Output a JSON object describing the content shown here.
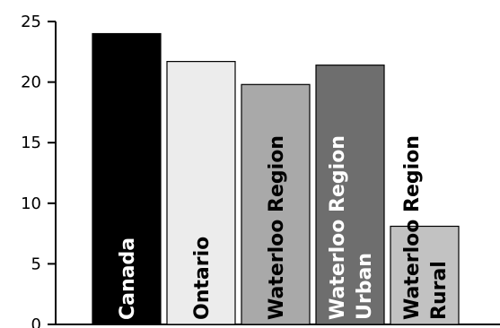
{
  "chart_data": {
    "type": "bar",
    "title": "",
    "xlabel": "",
    "ylabel": "",
    "ylim": [
      0,
      25
    ],
    "yticks": [
      0,
      5,
      10,
      15,
      20,
      25
    ],
    "grid": false,
    "categories": [
      {
        "lines": [
          "Canada"
        ],
        "value": 24.0,
        "color": "#000000",
        "label_color": "#ffffff"
      },
      {
        "lines": [
          "Ontario"
        ],
        "value": 21.7,
        "color": "#ececec",
        "label_color": "#000000"
      },
      {
        "lines": [
          "Waterloo Region"
        ],
        "value": 19.8,
        "color": "#a9a9a9",
        "label_color": "#000000"
      },
      {
        "lines": [
          "Waterloo Region",
          "Urban"
        ],
        "value": 21.4,
        "color": "#6e6e6e",
        "label_color": "#ffffff"
      },
      {
        "lines": [
          "Waterloo Region",
          "Rural"
        ],
        "value": 8.1,
        "color": "#c2c2c2",
        "label_color": "#000000"
      }
    ]
  }
}
